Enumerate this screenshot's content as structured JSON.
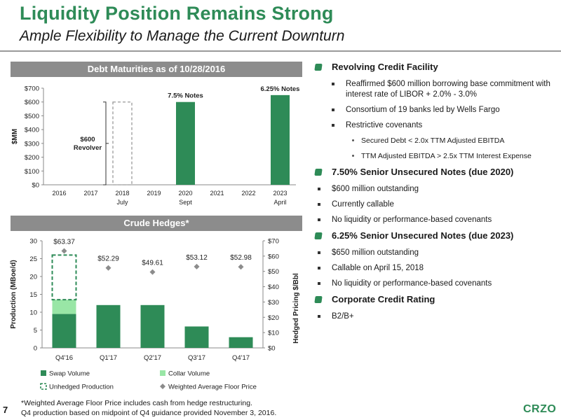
{
  "page": {
    "title": "Liquidity Position Remains Strong",
    "subtitle": "Ample Flexibility to Manage the Current Downturn",
    "page_number": "7",
    "logo_text": "CRZO",
    "footnotes": [
      "*Weighted Average Floor Price includes cash from hedge restructuring.",
      "Q4 production based on midpoint of Q4 guidance provided November 3, 2016."
    ]
  },
  "colors": {
    "brand_green": "#2e8b57",
    "bar_green": "#2e8b57",
    "collar_green": "#99e6a6",
    "floor_marker": "#8c8c8c",
    "panel_header": "#8c8c8c"
  },
  "right_panel": {
    "sections": [
      {
        "heading": "Revolving Credit Facility",
        "items": [
          {
            "text": "Reaffirmed $600 million borrowing base commitment  with interest rate of LIBOR + 2.0% - 3.0%"
          },
          {
            "text": "Consortium of 19 banks led by Wells Fargo"
          },
          {
            "text": "Restrictive covenants",
            "sub": [
              "Secured Debt < 2.0x TTM Adjusted EBITDA",
              "TTM Adjusted EBITDA > 2.5x TTM Interest Expense"
            ]
          }
        ]
      },
      {
        "heading": "7.50% Senior Unsecured Notes (due 2020)",
        "items": [
          {
            "text": "$600 million outstanding"
          },
          {
            "text": "Currently callable"
          },
          {
            "text": "No liquidity or performance-based covenants"
          }
        ]
      },
      {
        "heading": "6.25% Senior Unsecured Notes (due 2023)",
        "items": [
          {
            "text": "$650 million outstanding"
          },
          {
            "text": "Callable on April 15, 2018"
          },
          {
            "text": "No liquidity or performance-based covenants"
          }
        ]
      },
      {
        "heading": "Corporate Credit Rating",
        "items": [
          {
            "text": "B2/B+"
          }
        ]
      }
    ]
  },
  "chart_data": [
    {
      "type": "bar",
      "title": "Debt Maturities as of 10/28/2016",
      "ylabel": "$MM",
      "ylim": [
        0,
        700
      ],
      "yticks": [
        0,
        100,
        200,
        300,
        400,
        500,
        600,
        700
      ],
      "ytick_labels": [
        "$0",
        "$100",
        "$200",
        "$300",
        "$400",
        "$500",
        "$600",
        "$700"
      ],
      "categories": [
        "2016",
        "2017",
        "2018",
        "2019",
        "2020",
        "2021",
        "2022",
        "2023"
      ],
      "category_sublabels": [
        "",
        "",
        "July",
        "",
        "Sept",
        "",
        "",
        "April"
      ],
      "series": [
        {
          "values": [
            0,
            0,
            0,
            0,
            600,
            0,
            0,
            650
          ]
        }
      ],
      "bar_labels": {
        "4": "7.5% Notes",
        "7": "6.25% Notes"
      },
      "revolver": {
        "category_index": 2,
        "value": 600,
        "label_line1": "$600",
        "label_line2": "Revolver"
      },
      "grid": false
    },
    {
      "type": "bar",
      "title": "Crude Hedges*",
      "ylabel": "Production (MBoe/d)",
      "y2label": "Hedged Pricing $/Bbl",
      "ylim": [
        0,
        30
      ],
      "yticks": [
        0,
        5,
        10,
        15,
        20,
        25,
        30
      ],
      "ytick_labels": [
        "0",
        "5",
        "10",
        "15",
        "20",
        "25",
        "30"
      ],
      "y2lim": [
        0,
        70
      ],
      "y2ticks": [
        0,
        10,
        20,
        30,
        40,
        50,
        60,
        70
      ],
      "y2tick_labels": [
        "$0",
        "$10",
        "$20",
        "$30",
        "$40",
        "$50",
        "$60",
        "$70"
      ],
      "categories": [
        "Q4'16",
        "Q1'17",
        "Q2'17",
        "Q3'17",
        "Q4'17"
      ],
      "series": [
        {
          "name": "Swap Volume",
          "values": [
            9.5,
            12,
            12,
            6,
            3
          ]
        },
        {
          "name": "Collar Volume",
          "values": [
            4,
            0,
            0,
            0,
            0
          ]
        },
        {
          "name": "Unhedged Production",
          "values": [
            12.5,
            0,
            0,
            0,
            0
          ]
        },
        {
          "name": "Weighted Average Floor Price",
          "axis": "y2",
          "values": [
            63.37,
            52.29,
            49.61,
            53.12,
            52.98
          ]
        }
      ],
      "floor_labels": [
        "$63.37",
        "$52.29",
        "$49.61",
        "$53.12",
        "$52.98"
      ],
      "legend": [
        "Swap Volume",
        "Collar Volume",
        "Unhedged Production",
        "Weighted Average Floor Price"
      ],
      "legend_position": "bottom",
      "grid": false
    }
  ]
}
